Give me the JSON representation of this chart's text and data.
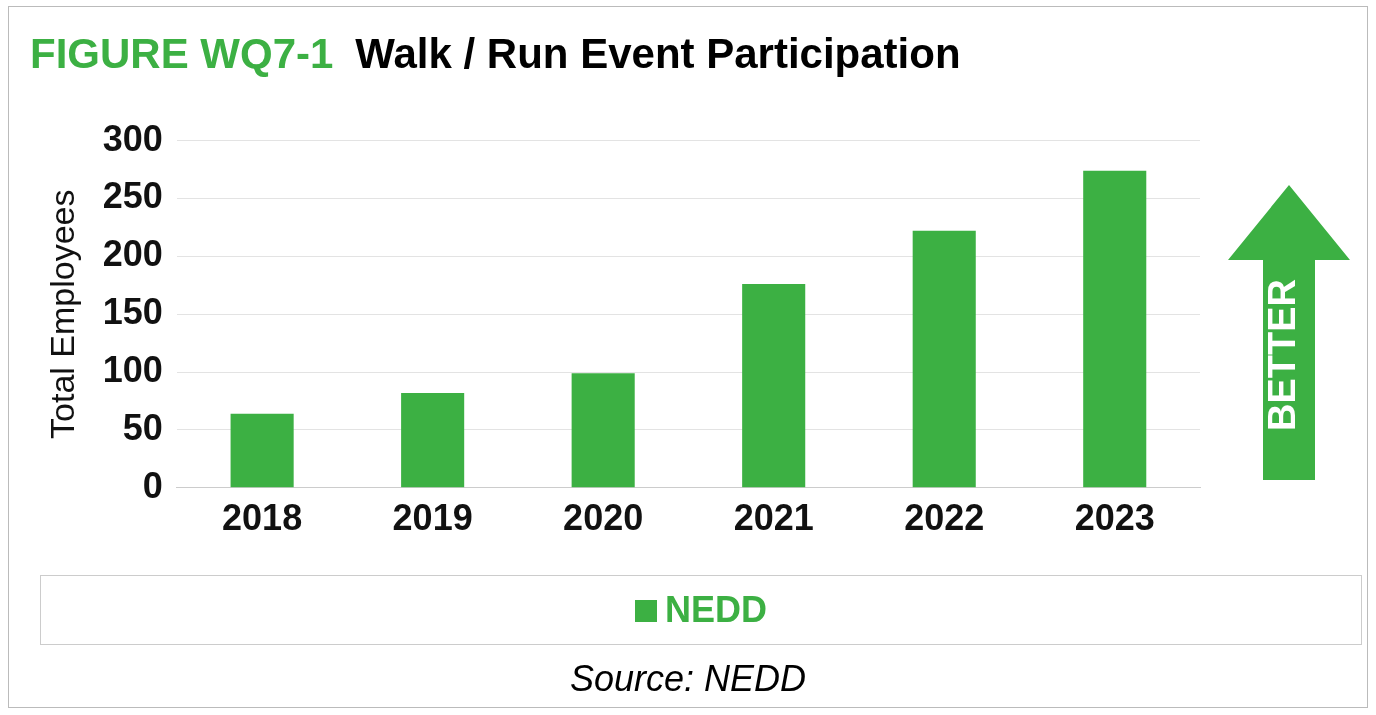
{
  "chart_data": {
    "type": "bar",
    "title": "FIGURE WQ7-1",
    "subtitle": "Walk / Run Event Participation",
    "ylabel": "Total Employees",
    "categories": [
      "2018",
      "2019",
      "2020",
      "2021",
      "2022",
      "2023"
    ],
    "series": [
      {
        "name": "NEDD",
        "color": "#3cb043",
        "values": [
          64,
          82,
          99,
          176,
          222,
          274
        ]
      }
    ],
    "ylim": [
      0,
      300
    ],
    "yticks": [
      0,
      50,
      100,
      150,
      200,
      250,
      300
    ],
    "grid": "y",
    "legend": "bottom",
    "annotations": [
      "Source: NEDD",
      "BETTER"
    ]
  }
}
